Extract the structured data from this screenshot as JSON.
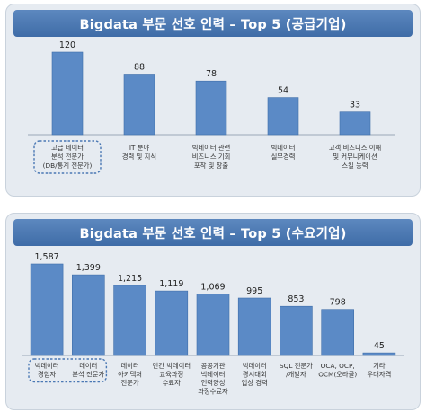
{
  "chart_data": [
    {
      "type": "bar",
      "title": "Bigdata 부문 선호 인력 – Top 5 (공급기업)",
      "categories": [
        [
          "고급 데이터",
          "분석 전문가",
          "(DB/통계 전문가)"
        ],
        [
          "IT 분야",
          "경력 및 지식"
        ],
        [
          "빅데이터 관련",
          "비즈니스 기회",
          "포착 및 창출"
        ],
        [
          "빅데이터",
          "실무경력"
        ],
        [
          "고객 비즈니스 이해",
          "및 커뮤니케이션",
          "스킬 능력"
        ]
      ],
      "values": [
        120,
        88,
        78,
        54,
        33
      ],
      "value_labels": [
        "120",
        "88",
        "78",
        "54",
        "33"
      ],
      "highlighted_category": 0,
      "bar_color": "#5b8ac6"
    },
    {
      "type": "bar",
      "title": "Bigdata 부문 선호 인력 – Top 5 (수요기업)",
      "categories": [
        [
          "빅데이터",
          "경험자"
        ],
        [
          "데이터",
          "분석 전문가"
        ],
        [
          "데이터",
          "아키텍처",
          "전문가"
        ],
        [
          "민간 빅데이터",
          "교육과정",
          "수료자"
        ],
        [
          "공공기관",
          "빅데이터",
          "인력양성",
          "과정수료자"
        ],
        [
          "빅데이터",
          "경시대회",
          "입상 경력"
        ],
        [
          "SQL 전문가",
          "/개발자"
        ],
        [
          "OCA, OCP,",
          "OCM(오라클)"
        ],
        [
          "기타",
          "우대자격"
        ]
      ],
      "values": [
        1587,
        1399,
        1215,
        1119,
        1069,
        995,
        853,
        798,
        45
      ],
      "value_labels": [
        "1,587",
        "1,399",
        "1,215",
        "1,119",
        "1,069",
        "995",
        "853",
        "798",
        "45"
      ],
      "highlighted_categories": [
        0,
        1
      ],
      "bar_color": "#5b8ac6"
    }
  ]
}
